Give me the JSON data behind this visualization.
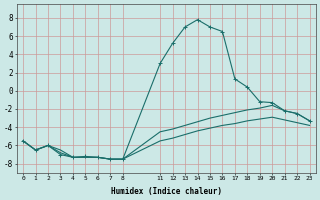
{
  "xlabel": "Humidex (Indice chaleur)",
  "background_color": "#cce8e6",
  "grid_color": "#cc9999",
  "line_color": "#1a6e6a",
  "xlim": [
    -0.5,
    23.5
  ],
  "ylim": [
    -9.0,
    9.5
  ],
  "yticks": [
    -8,
    -6,
    -4,
    -2,
    0,
    2,
    4,
    6,
    8
  ],
  "xticks": [
    0,
    1,
    2,
    3,
    4,
    5,
    6,
    7,
    8,
    11,
    12,
    13,
    14,
    15,
    16,
    17,
    18,
    19,
    20,
    21,
    22,
    23
  ],
  "line1_x": [
    0,
    1,
    2,
    3,
    4,
    5,
    6,
    7,
    8,
    11,
    12,
    13,
    14,
    15,
    16,
    17,
    18,
    19,
    20,
    21,
    22,
    23
  ],
  "line1_y": [
    -5.5,
    -6.5,
    -6.0,
    -7.0,
    -7.3,
    -7.2,
    -7.3,
    -7.5,
    -7.5,
    3.0,
    5.2,
    7.0,
    7.8,
    7.0,
    6.5,
    1.3,
    0.4,
    -1.2,
    -1.3,
    -2.2,
    -2.5,
    -3.3
  ],
  "line2_x": [
    0,
    1,
    2,
    3,
    4,
    5,
    6,
    7,
    8,
    11,
    12,
    13,
    14,
    15,
    16,
    17,
    18,
    19,
    20,
    21,
    22,
    23
  ],
  "line2_y": [
    -5.5,
    -6.5,
    -6.0,
    -6.5,
    -7.3,
    -7.3,
    -7.3,
    -7.5,
    -7.5,
    -4.5,
    -4.2,
    -3.8,
    -3.4,
    -3.0,
    -2.7,
    -2.4,
    -2.1,
    -1.9,
    -1.6,
    -2.2,
    -2.5,
    -3.3
  ],
  "line3_x": [
    0,
    1,
    2,
    3,
    4,
    5,
    6,
    7,
    8,
    11,
    12,
    13,
    14,
    15,
    16,
    17,
    18,
    19,
    20,
    21,
    22,
    23
  ],
  "line3_y": [
    -5.5,
    -6.5,
    -6.0,
    -6.8,
    -7.3,
    -7.3,
    -7.3,
    -7.5,
    -7.5,
    -5.5,
    -5.2,
    -4.8,
    -4.4,
    -4.1,
    -3.8,
    -3.6,
    -3.3,
    -3.1,
    -2.9,
    -3.2,
    -3.5,
    -3.8
  ],
  "marker_x": [
    0,
    1,
    2,
    3,
    4,
    5,
    6,
    7,
    8,
    11,
    12,
    13,
    14,
    15,
    16,
    17,
    18,
    19,
    20,
    21,
    22,
    23
  ],
  "marker_y": [
    -5.5,
    -6.5,
    -6.0,
    -7.0,
    -7.3,
    -7.2,
    -7.3,
    -7.5,
    -7.5,
    3.0,
    5.2,
    7.0,
    7.8,
    7.0,
    6.5,
    1.3,
    0.4,
    -1.2,
    -1.3,
    -2.2,
    -2.5,
    -3.3
  ]
}
